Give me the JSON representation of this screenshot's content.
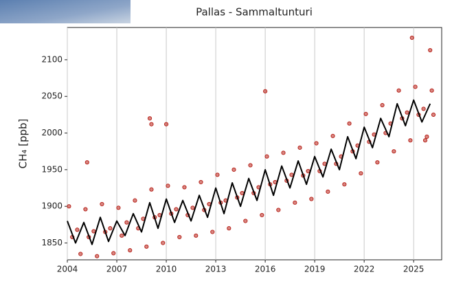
{
  "chart_data": {
    "type": "scatter",
    "title": "Pallas - Sammaltunturi",
    "y_label": "CH₄ [ppb]",
    "xlim": [
      2004,
      2026.7
    ],
    "ylim": [
      1827,
      2144
    ],
    "xticks": [
      2004,
      2007,
      2010,
      2013,
      2016,
      2019,
      2022,
      2025
    ],
    "yticks": [
      1850,
      1900,
      1950,
      2000,
      2050,
      2100
    ],
    "grid": true,
    "series": [
      {
        "type": "scatter",
        "color": "#b8241c",
        "x": [
          2004.1,
          2004.3,
          2004.6,
          2004.8,
          2005.1,
          2005.3,
          2005.6,
          2005.8,
          2006.1,
          2006.3,
          2006.6,
          2006.8,
          2007.1,
          2007.3,
          2007.6,
          2007.8,
          2008.1,
          2008.3,
          2008.6,
          2008.8,
          2009.1,
          2009.3,
          2009.6,
          2009.8,
          2010.1,
          2010.3,
          2010.6,
          2010.8,
          2011.1,
          2011.3,
          2011.6,
          2011.8,
          2012.1,
          2012.3,
          2012.6,
          2012.8,
          2013.1,
          2013.3,
          2013.6,
          2013.8,
          2014.1,
          2014.3,
          2014.6,
          2014.8,
          2015.1,
          2015.3,
          2015.6,
          2015.8,
          2016.1,
          2016.3,
          2016.6,
          2016.8,
          2017.1,
          2017.3,
          2017.6,
          2017.8,
          2018.1,
          2018.3,
          2018.6,
          2018.8,
          2019.1,
          2019.3,
          2019.6,
          2019.8,
          2020.1,
          2020.3,
          2020.6,
          2020.8,
          2021.1,
          2021.3,
          2021.6,
          2021.8,
          2022.1,
          2022.3,
          2022.6,
          2022.8,
          2023.1,
          2023.3,
          2023.6,
          2023.8,
          2024.1,
          2024.3,
          2024.6,
          2024.8,
          2025.1,
          2025.3,
          2025.6,
          2025.8,
          2026.1,
          2026.2,
          2005.2,
          2009.0,
          2009.1,
          2010.0,
          2016.0,
          2024.9,
          2026.0,
          2025.7
        ],
        "values": [
          1900,
          1858,
          1868,
          1835,
          1896,
          1858,
          1866,
          1832,
          1903,
          1865,
          1870,
          1836,
          1898,
          1860,
          1878,
          1840,
          1908,
          1870,
          1883,
          1845,
          1923,
          1885,
          1888,
          1850,
          1928,
          1890,
          1896,
          1858,
          1926,
          1888,
          1898,
          1860,
          1933,
          1895,
          1903,
          1865,
          1943,
          1905,
          1908,
          1870,
          1950,
          1912,
          1918,
          1880,
          1956,
          1918,
          1926,
          1888,
          1968,
          1930,
          1933,
          1895,
          1973,
          1935,
          1943,
          1905,
          1980,
          1942,
          1948,
          1910,
          1986,
          1948,
          1958,
          1920,
          1996,
          1958,
          1968,
          1930,
          2013,
          1975,
          1983,
          1945,
          2026,
          1988,
          1998,
          1960,
          2038,
          2000,
          2013,
          1975,
          2058,
          2020,
          2028,
          1990,
          2063,
          2025,
          2033,
          1995,
          2058,
          2025,
          1960,
          2020,
          2012,
          2012,
          2057,
          2130,
          2113,
          1990
        ]
      },
      {
        "type": "line",
        "color": "#000000",
        "x": [
          2004.0,
          2004.5,
          2005.0,
          2005.5,
          2006.0,
          2006.5,
          2007.0,
          2007.5,
          2008.0,
          2008.5,
          2009.0,
          2009.5,
          2010.0,
          2010.5,
          2011.0,
          2011.5,
          2012.0,
          2012.5,
          2013.0,
          2013.5,
          2014.0,
          2014.5,
          2015.0,
          2015.5,
          2016.0,
          2016.5,
          2017.0,
          2017.5,
          2018.0,
          2018.5,
          2019.0,
          2019.5,
          2020.0,
          2020.5,
          2021.0,
          2021.5,
          2022.0,
          2022.5,
          2023.0,
          2023.5,
          2024.0,
          2024.5,
          2025.0,
          2025.5,
          2026.0
        ],
        "values": [
          1880,
          1850,
          1878,
          1848,
          1885,
          1852,
          1880,
          1860,
          1890,
          1865,
          1905,
          1870,
          1910,
          1878,
          1908,
          1880,
          1915,
          1885,
          1925,
          1890,
          1932,
          1900,
          1938,
          1908,
          1950,
          1915,
          1955,
          1925,
          1962,
          1930,
          1968,
          1940,
          1978,
          1950,
          1995,
          1965,
          2008,
          1980,
          2020,
          1995,
          2040,
          2010,
          2045,
          2015,
          2040
        ]
      }
    ]
  }
}
